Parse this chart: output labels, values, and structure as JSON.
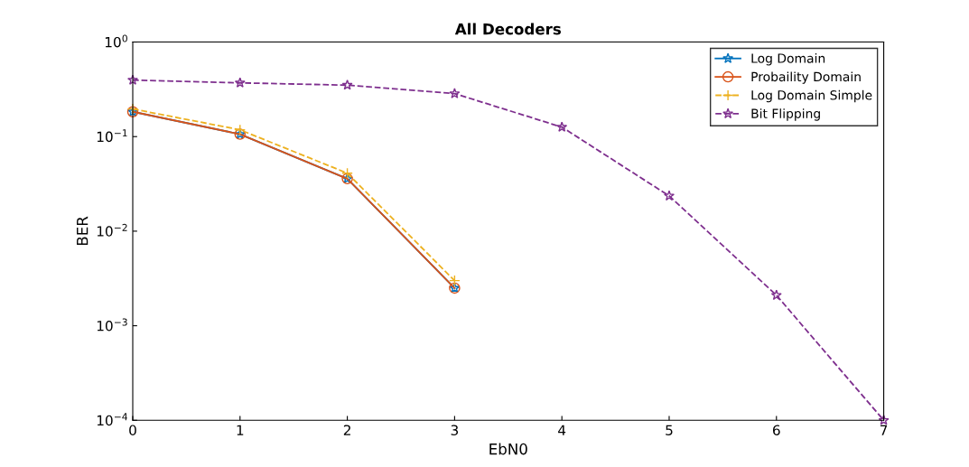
{
  "chart_data": {
    "type": "line",
    "title": "All Decoders",
    "xlabel": "EbN0",
    "ylabel": "BER",
    "log": "y",
    "x": [
      0,
      1,
      2,
      3
    ],
    "series": [
      {
        "name": "Log Domain",
        "color": "#0072bd",
        "marker": "star",
        "line_style": "solid",
        "values": [
          0.183,
          0.106,
          0.0359,
          0.0025
        ]
      },
      {
        "name": "Probaility Domain",
        "color": "#d95319",
        "marker": "circle",
        "line_style": "solid",
        "values": [
          0.183,
          0.106,
          0.0359,
          0.0025
        ]
      },
      {
        "name": "Log Domain Simple",
        "color": "#edb120",
        "marker": "cross",
        "line_style": "dashed",
        "values": [
          0.196,
          0.118,
          0.041,
          0.003
        ]
      },
      {
        "name": "Bit Flipping",
        "color": "#7e2f8e",
        "marker": "star",
        "line_style": "dashed",
        "x": [
          0,
          1,
          2,
          3,
          4,
          5,
          6,
          7
        ],
        "values": [
          0.396,
          0.37,
          0.35,
          0.285,
          0.126,
          0.0236,
          0.0021,
          0.0001
        ]
      }
    ],
    "xlim": [
      0,
      7
    ],
    "xticks": [
      0,
      1,
      2,
      3,
      4,
      5,
      6,
      7
    ],
    "ylim": [
      0.0001,
      1
    ],
    "yticks": [
      {
        "value": 0.0001,
        "label": "10$^{−4}$"
      },
      {
        "value": 0.001,
        "label": "10$^{−3}$"
      },
      {
        "value": 0.01,
        "label": "10$^{−2}$"
      },
      {
        "value": 0.1,
        "label": "10$^{−1}$"
      },
      {
        "value": 1,
        "label": "10$^{0}$"
      }
    ],
    "grid": false,
    "legend": "top right"
  }
}
